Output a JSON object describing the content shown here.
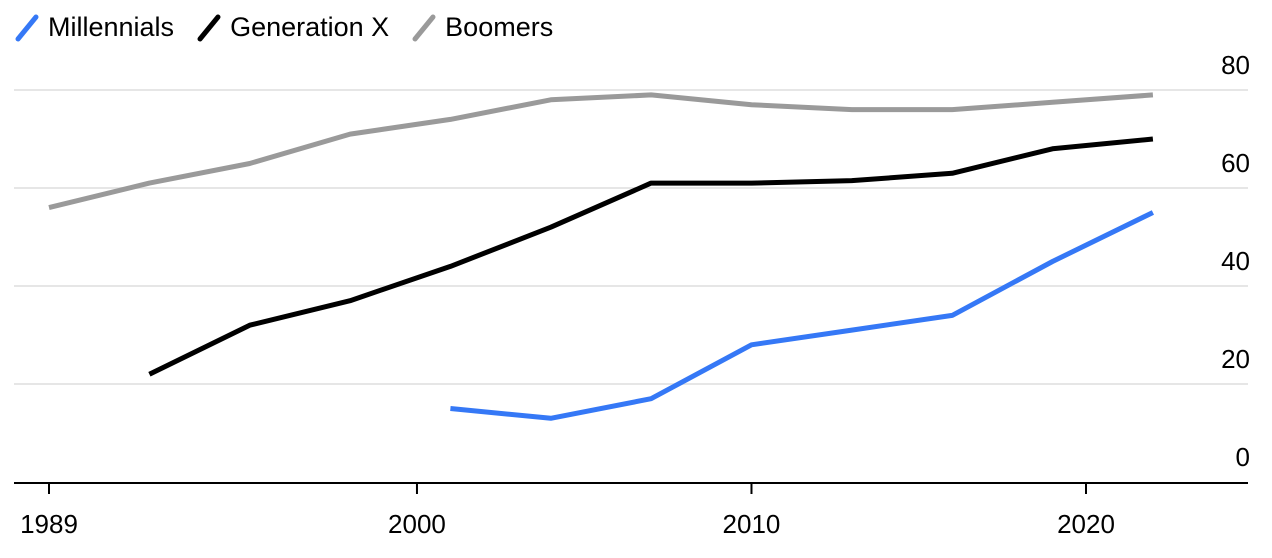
{
  "chart_data": {
    "type": "line",
    "title": "",
    "xlabel": "",
    "ylabel": "",
    "xlim": [
      1989,
      2025
    ],
    "ylim": [
      0,
      80
    ],
    "x_ticks": [
      "1989",
      "2000",
      "2010",
      "2020"
    ],
    "y_ticks": [
      "0",
      "20",
      "40",
      "60",
      "80"
    ],
    "grid": "horizontal",
    "legend_position": "top-left",
    "y_axis_position": "right",
    "series": [
      {
        "name": "Millennials",
        "color": "#3578f6",
        "points": [
          [
            2001,
            15
          ],
          [
            2004,
            13
          ],
          [
            2007,
            17
          ],
          [
            2010,
            28
          ],
          [
            2013,
            31
          ],
          [
            2016,
            34
          ],
          [
            2019,
            45
          ],
          [
            2022,
            55
          ]
        ]
      },
      {
        "name": "Generation X",
        "color": "#000000",
        "points": [
          [
            1992,
            22
          ],
          [
            1995,
            32
          ],
          [
            1998,
            37
          ],
          [
            2001,
            44
          ],
          [
            2004,
            52
          ],
          [
            2007,
            61
          ],
          [
            2010,
            61
          ],
          [
            2013,
            61.5
          ],
          [
            2016,
            63
          ],
          [
            2019,
            68
          ],
          [
            2022,
            70
          ]
        ]
      },
      {
        "name": "Boomers",
        "color": "#9a9a9a",
        "points": [
          [
            1989,
            56
          ],
          [
            1992,
            61
          ],
          [
            1995,
            65
          ],
          [
            1998,
            71
          ],
          [
            2001,
            74
          ],
          [
            2004,
            78
          ],
          [
            2007,
            79
          ],
          [
            2010,
            77
          ],
          [
            2013,
            76
          ],
          [
            2016,
            76
          ],
          [
            2019,
            77.5
          ],
          [
            2022,
            79
          ]
        ]
      }
    ]
  }
}
